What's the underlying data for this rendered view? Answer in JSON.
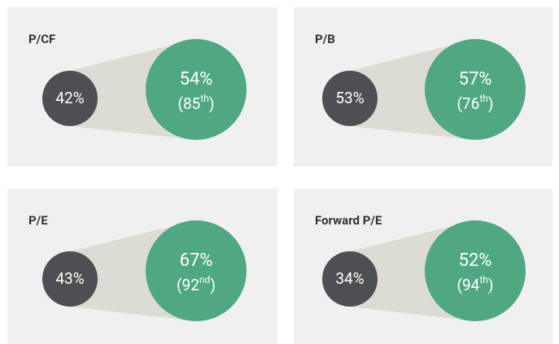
{
  "panels": [
    {
      "title": "P/CF",
      "small": "42%",
      "big": "54%",
      "rank": [
        "(85",
        "th",
        ")"
      ]
    },
    {
      "title": "P/B",
      "small": "53%",
      "big": "57%",
      "rank": [
        "(76",
        "th",
        ")"
      ]
    },
    {
      "title": "P/E",
      "small": "43%",
      "big": "67%",
      "rank": [
        "(92",
        "nd",
        ")"
      ]
    },
    {
      "title": "Forward P/E",
      "small": "34%",
      "big": "52%",
      "rank": [
        "(94",
        "th",
        ")"
      ]
    }
  ]
}
